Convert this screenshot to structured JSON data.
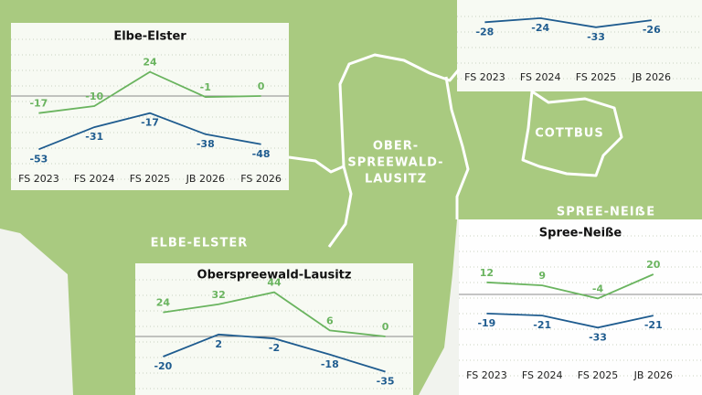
{
  "map": {
    "labels": [
      "ELBE-ELSTER",
      "OBER-",
      "SPREEWALD-",
      "LAUSITZ",
      "COTTBUS",
      "SPREE-NEIẞE"
    ]
  },
  "chart_data": [
    {
      "type": "line",
      "title": "Elbe-Elster",
      "categories": [
        "FS 2023",
        "FS 2024",
        "FS 2025",
        "JB 2026",
        "FS 2026"
      ],
      "ylim": [
        -70,
        50
      ],
      "series": [
        {
          "color": "#6ab45f",
          "values": [
            -17,
            -10,
            24,
            -1,
            0
          ]
        },
        {
          "color": "#1f5c8f",
          "values": [
            -53,
            -31,
            -17,
            -38,
            -48
          ]
        }
      ]
    },
    {
      "type": "line",
      "categories": [
        "FS 2023",
        "FS 2024",
        "FS 2025",
        "JB 2026"
      ],
      "ylim": [
        -40,
        -15
      ],
      "series": [
        {
          "color": "#1f5c8f",
          "values": [
            -28,
            -24,
            -33,
            -26
          ]
        }
      ]
    },
    {
      "type": "line",
      "title": "Oberspreewald-Lausitz",
      "ylim": [
        -40,
        60
      ],
      "series": [
        {
          "color": "#6ab45f",
          "values": [
            24,
            32,
            44,
            6,
            0
          ]
        },
        {
          "color": "#1f5c8f",
          "values": [
            -20,
            2,
            -2,
            -18,
            -35
          ]
        }
      ]
    },
    {
      "type": "line",
      "title": "Spree-Neiße",
      "categories": [
        "FS 2023",
        "FS 2024",
        "FS 2025",
        "JB 2026"
      ],
      "ylim": [
        -40,
        40
      ],
      "series": [
        {
          "color": "#6ab45f",
          "values": [
            12,
            9,
            -4,
            20
          ]
        },
        {
          "color": "#1f5c8f",
          "values": [
            -19,
            -21,
            -33,
            -21
          ]
        }
      ]
    }
  ]
}
